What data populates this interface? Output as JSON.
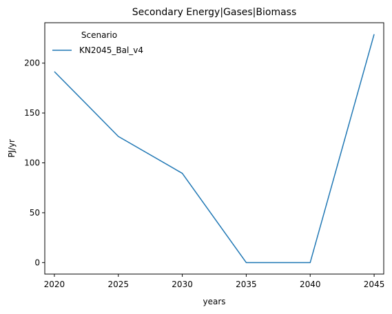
{
  "chart_data": {
    "type": "line",
    "title": "Secondary Energy|Gases|Biomass",
    "xlabel": "years",
    "ylabel": "PJ/yr",
    "x": [
      2020,
      2025,
      2030,
      2035,
      2040,
      2045
    ],
    "xticks": [
      "2020",
      "2025",
      "2030",
      "2035",
      "2040",
      "2045"
    ],
    "yticks": [
      "0",
      "50",
      "100",
      "150",
      "200"
    ],
    "xlim": [
      2019.25,
      2045.75
    ],
    "ylim": [
      -11.5,
      240.5
    ],
    "grid": false,
    "legend": {
      "title": "Scenario",
      "position": "top-left"
    },
    "series": [
      {
        "name": "KN2045_Bal_v4",
        "color": "#1f77b4",
        "values": [
          191.5,
          126.5,
          89.5,
          0,
          0,
          229
        ]
      }
    ]
  }
}
